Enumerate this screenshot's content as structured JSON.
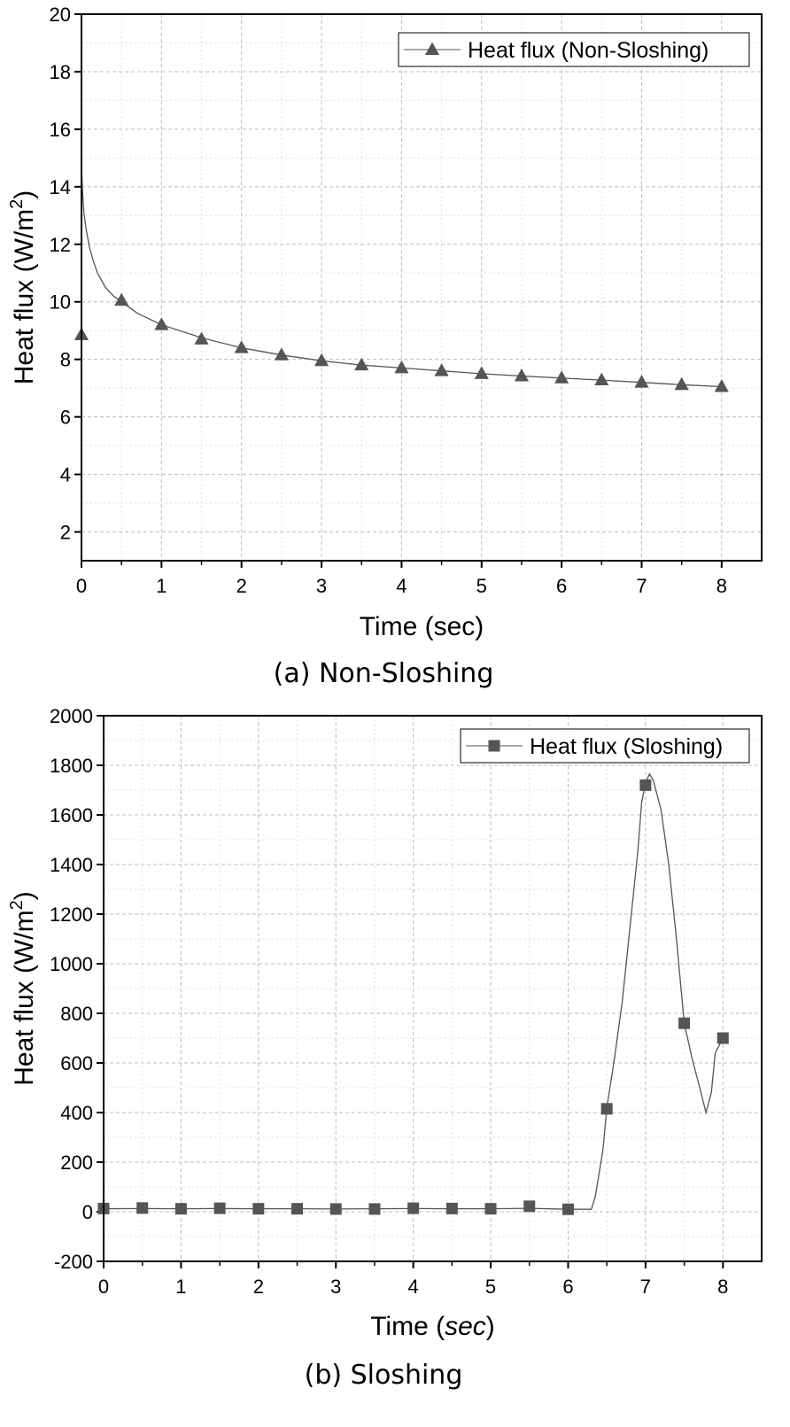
{
  "chart_data": [
    {
      "type": "line",
      "caption": "(a) Non-Sloshing",
      "xlabel": "Time (sec)",
      "ylabel_main": "Heat flux (W/m",
      "ylabel_sup": "2",
      "ylabel_close": ")",
      "xlim": [
        0,
        8.5
      ],
      "ylim": [
        1,
        20
      ],
      "x_ticks": [
        0,
        1,
        2,
        3,
        4,
        5,
        6,
        7,
        8
      ],
      "y_ticks": [
        2,
        4,
        6,
        8,
        10,
        12,
        14,
        16,
        18,
        20
      ],
      "grid": true,
      "legend_position": "top-right",
      "series": [
        {
          "name": "Heat flux (Non-Sloshing)",
          "marker": "triangle",
          "color": "#555555",
          "line_x": [
            0,
            0.01,
            0.03,
            0.06,
            0.1,
            0.15,
            0.2,
            0.3,
            0.4,
            0.5,
            0.7,
            1,
            1.5,
            2,
            2.5,
            3,
            3.5,
            4,
            4.5,
            5,
            5.5,
            6,
            6.5,
            7,
            7.5,
            8
          ],
          "line_y": [
            14.8,
            14.0,
            13.1,
            12.5,
            11.9,
            11.4,
            11.0,
            10.5,
            10.2,
            10.0,
            9.6,
            9.2,
            8.75,
            8.4,
            8.15,
            7.95,
            7.8,
            7.7,
            7.6,
            7.5,
            7.42,
            7.35,
            7.28,
            7.2,
            7.12,
            7.05
          ],
          "marker_x": [
            0,
            0.5,
            1,
            1.5,
            2,
            2.5,
            3,
            3.5,
            4,
            4.5,
            5,
            5.5,
            6,
            6.5,
            7,
            7.5,
            8
          ],
          "marker_y": [
            8.85,
            10.05,
            9.2,
            8.7,
            8.4,
            8.15,
            7.95,
            7.8,
            7.7,
            7.6,
            7.5,
            7.42,
            7.35,
            7.28,
            7.2,
            7.12,
            7.05
          ]
        }
      ]
    },
    {
      "type": "line",
      "caption": "(b) Sloshing",
      "xlabel_pre": "Time (",
      "xlabel_italic": "sec",
      "xlabel_post": ")",
      "ylabel_main": "Heat flux (W/m",
      "ylabel_sup": "2",
      "ylabel_close": ")",
      "xlim": [
        0,
        8.5
      ],
      "ylim": [
        -200,
        2000
      ],
      "x_ticks": [
        0,
        1,
        2,
        3,
        4,
        5,
        6,
        7,
        8
      ],
      "y_ticks": [
        -200,
        0,
        200,
        400,
        600,
        800,
        1000,
        1200,
        1400,
        1600,
        1800,
        2000
      ],
      "grid": true,
      "legend_position": "top-right",
      "series": [
        {
          "name": "Heat flux (Sloshing)",
          "marker": "square",
          "color": "#555555",
          "line_x": [
            0,
            0.5,
            1,
            1.5,
            2,
            2.5,
            3,
            3.5,
            4,
            4.5,
            5,
            5.5,
            6,
            6.3,
            6.35,
            6.45,
            6.5,
            6.6,
            6.7,
            6.8,
            6.9,
            6.95,
            7.0,
            7.05,
            7.1,
            7.2,
            7.3,
            7.4,
            7.5,
            7.6,
            7.7,
            7.78,
            7.85,
            7.9,
            8.0
          ],
          "line_y": [
            12,
            13,
            12,
            13,
            12,
            12,
            11,
            12,
            13,
            12,
            12,
            14,
            10,
            10,
            60,
            250,
            420,
            620,
            850,
            1150,
            1450,
            1650,
            1730,
            1765,
            1740,
            1620,
            1400,
            1100,
            760,
            620,
            500,
            400,
            480,
            640,
            700
          ],
          "marker_x": [
            0,
            0.5,
            1,
            1.5,
            2,
            2.5,
            3,
            3.5,
            4,
            4.5,
            5,
            5.5,
            6,
            6.5,
            7,
            7.5,
            8
          ],
          "marker_y": [
            13,
            15,
            12,
            14,
            12,
            12,
            11,
            11,
            14,
            13,
            12,
            22,
            10,
            415,
            1720,
            760,
            700
          ]
        }
      ]
    }
  ]
}
